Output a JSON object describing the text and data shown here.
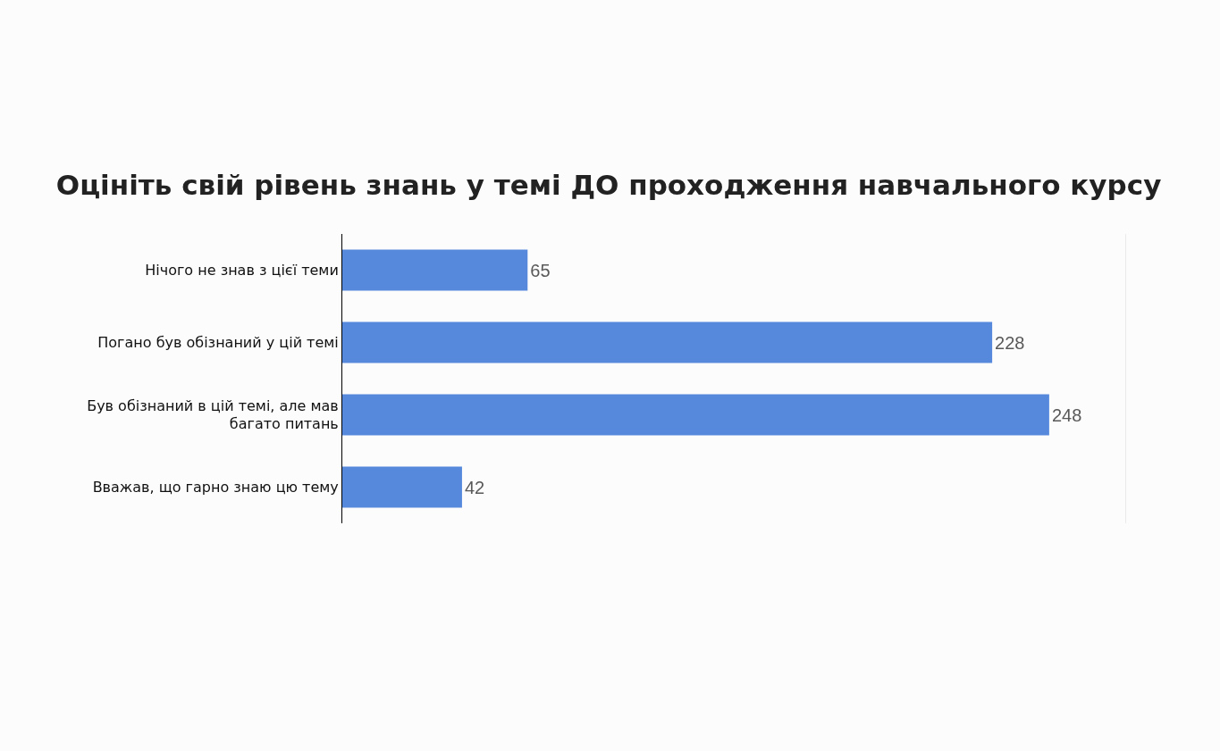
{
  "chart_data": {
    "type": "bar",
    "orientation": "horizontal",
    "title": "Оцініть свій рівень знань у темі ДО проходження навчального курсу",
    "categories": [
      "Нічого не знав з цієї теми",
      "Погано був обізнаний у цій темі",
      "Був обізнаний в цій темі, але мав багато питань",
      "Вважав, що гарно знаю цю тему"
    ],
    "values": [
      65,
      228,
      248,
      42
    ],
    "color": "#5689dc",
    "xlim": [
      0,
      275
    ],
    "data_labels": true,
    "grid": false,
    "legend": false,
    "tick_labels": "y"
  }
}
